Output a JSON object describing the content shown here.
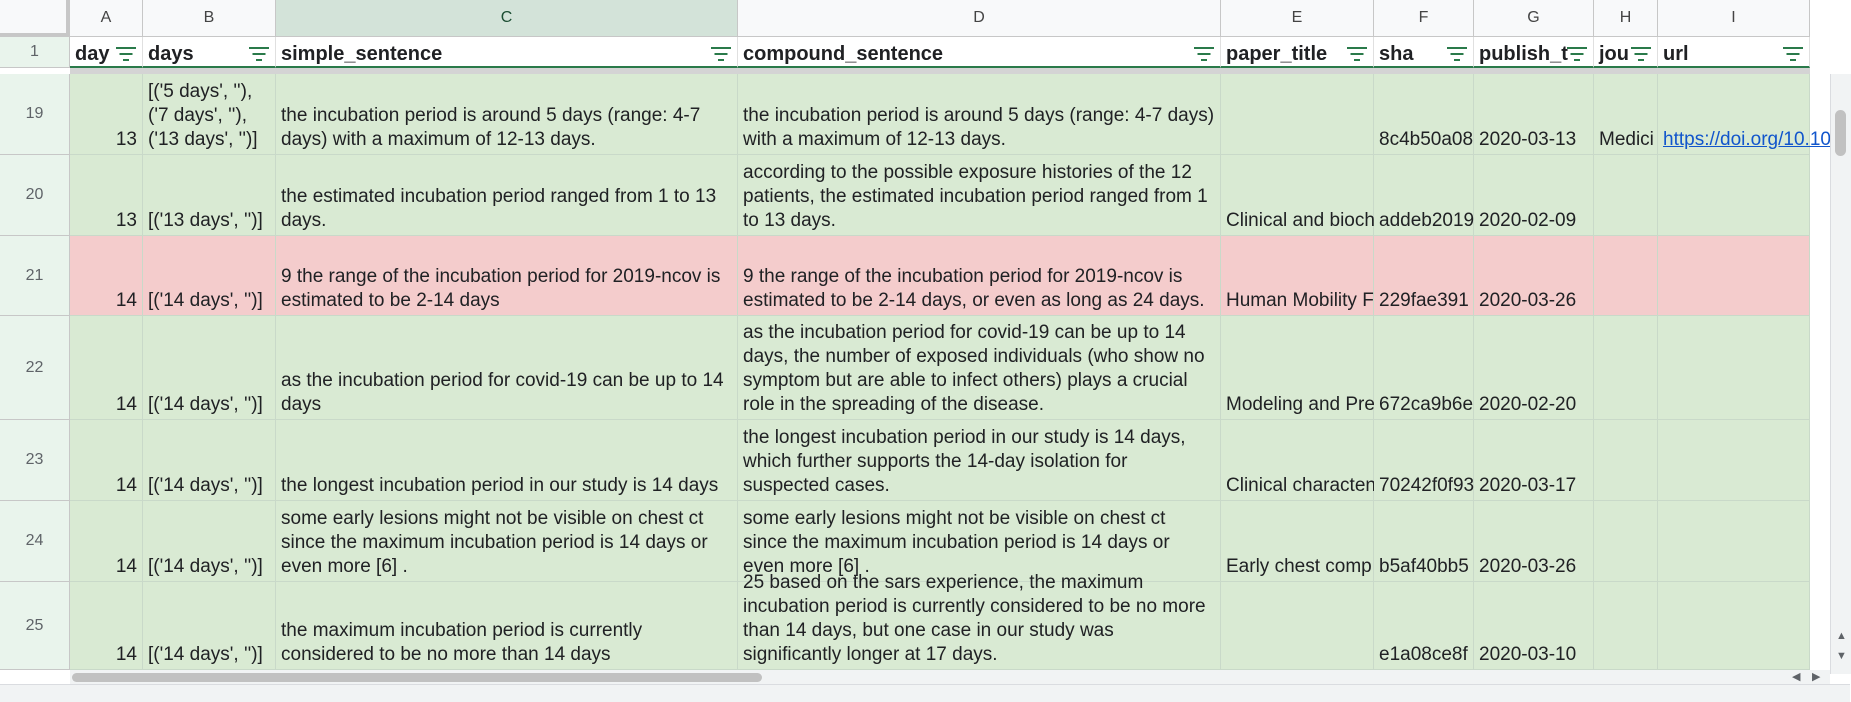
{
  "columns": [
    "A",
    "B",
    "C",
    "D",
    "E",
    "F",
    "G",
    "H",
    "I"
  ],
  "headers": {
    "row_number": "1",
    "day": "day",
    "days": "days",
    "simple_sentence": "simple_sentence",
    "compound_sentence": "compound_sentence",
    "paper_title": "paper_title",
    "sha": "sha",
    "publish_time": "publish_t",
    "journal": "jou",
    "url": "url"
  },
  "rows": [
    {
      "num": "19",
      "day": "13",
      "days": "[('5 days', ''),\n('7 days', ''),\n('13 days', '')]",
      "simple": "the incubation period is around 5 days (range: 4-7 days) with a maximum of 12-13 days.",
      "compound": "the incubation period is around 5 days (range: 4-7 days) with a maximum of 12-13 days.",
      "title": "",
      "sha": "8c4b50a08",
      "date": "2020-03-13",
      "journal": "Medici",
      "url": "https://doi.org/10.10"
    },
    {
      "num": "20",
      "day": "13",
      "days": "[('13 days', '')]",
      "simple": "the estimated incubation period ranged from 1 to 13 days.",
      "compound": "according to the possible exposure histories of the 12 patients, the estimated incubation period ranged from 1 to 13 days.",
      "title": "Clinical and bioch",
      "sha": "addeb2019",
      "date": "2020-02-09",
      "journal": "",
      "url": ""
    },
    {
      "num": "21",
      "day": "14",
      "days": "[('14 days', '')]",
      "simple": "9 the range of the incubation period for 2019-ncov is estimated to be 2-14 days",
      "compound": "9 the range of the incubation period for 2019-ncov is estimated to be 2-14 days, or even as long as 24 days.",
      "title": "Human Mobility F",
      "sha": "229fae391",
      "date": "2020-03-26",
      "journal": "",
      "url": ""
    },
    {
      "num": "22",
      "day": "14",
      "days": "[('14 days', '')]",
      "simple": "as the incubation period for covid-19 can be up to 14 days",
      "compound": "as the incubation period for covid-19 can be up to 14 days, the number of exposed individuals (who show no symptom but are able to infect others) plays a crucial role in the spreading of the disease.",
      "title": "Modeling and Pre",
      "sha": "672ca9b6e",
      "date": "2020-02-20",
      "journal": "",
      "url": ""
    },
    {
      "num": "23",
      "day": "14",
      "days": "[('14 days', '')]",
      "simple": "the longest incubation period in our study is 14 days",
      "compound": "the longest incubation period in our study is 14 days, which further supports the 14-day isolation for suspected cases.",
      "title": "Clinical characten",
      "sha": "70242f0f93",
      "date": "2020-03-17",
      "journal": "",
      "url": ""
    },
    {
      "num": "24",
      "day": "14",
      "days": "[('14 days', '')]",
      "simple": "some early lesions might not be visible on chest ct since the maximum incubation period is 14 days or even more [6] .",
      "compound": "some early lesions might not be visible on chest ct since the maximum incubation period is 14 days or even more [6] .",
      "title": "Early chest comp",
      "sha": "b5af40bb5",
      "date": "2020-03-26",
      "journal": "",
      "url": ""
    },
    {
      "num": "25",
      "day": "14",
      "days": "[('14 days', '')]",
      "simple": "the maximum incubation period is currently considered to be no more than 14 days",
      "compound": "25 based on the sars experience, the maximum incubation period is currently considered to be no more than 14 days, but one case in our study was significantly longer at 17 days.",
      "title": "",
      "sha": "e1a08ce8f",
      "date": "2020-03-10",
      "journal": "",
      "url": ""
    }
  ],
  "colors": {
    "row_green": "#d9ead3",
    "row_red": "#f4cccc",
    "header_border": "#2a7a4a",
    "selected_column": "#d3e3d9"
  }
}
